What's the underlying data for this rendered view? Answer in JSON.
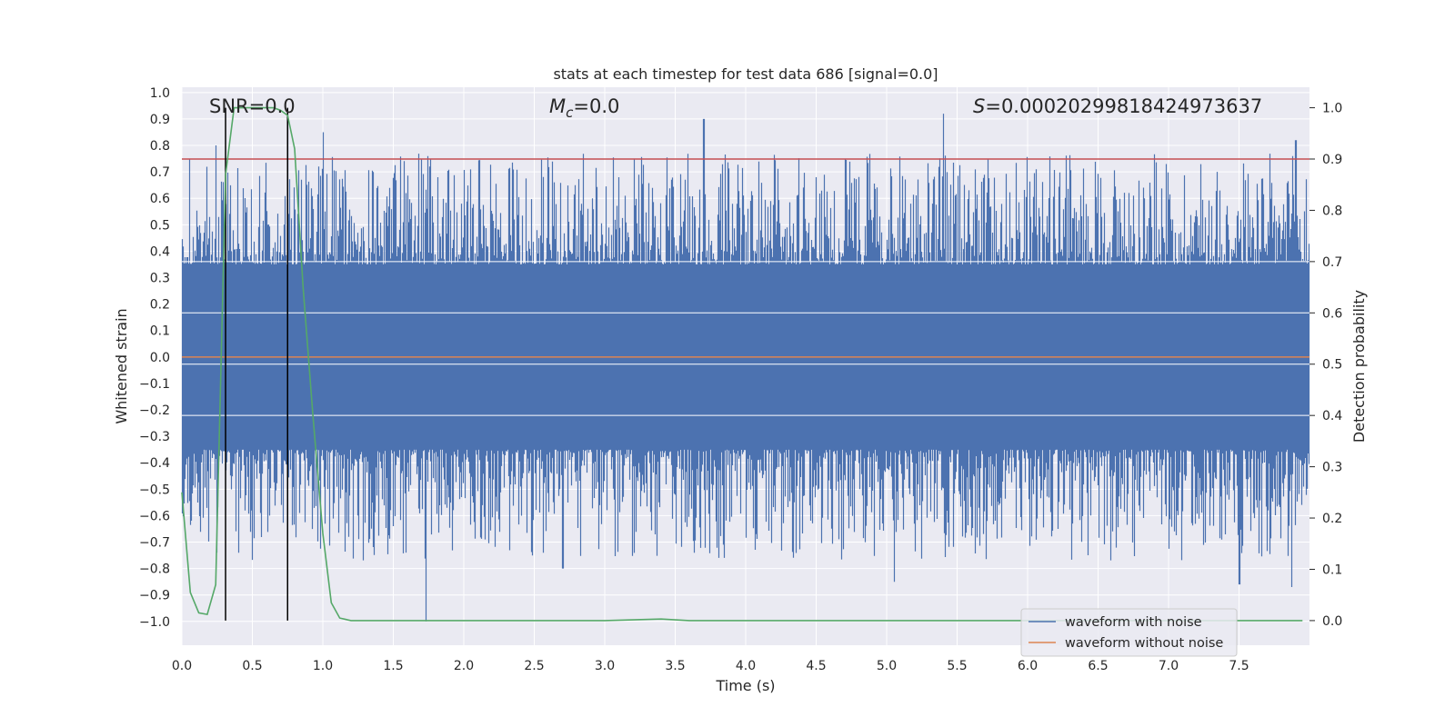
{
  "chart_data": {
    "type": "line",
    "title": "stats at each timestep for test data 686 [signal=0.0]",
    "xlabel": "Time (s)",
    "ylabel": "Whitened strain",
    "y2label": "Detection probability",
    "xlim": [
      0.0,
      8.0
    ],
    "ylim": [
      -1.09,
      1.02
    ],
    "y2lim": [
      -0.048,
      1.04
    ],
    "x_ticks": [
      "0.0",
      "0.5",
      "1.0",
      "1.5",
      "2.0",
      "2.5",
      "3.0",
      "3.5",
      "4.0",
      "4.5",
      "5.0",
      "5.5",
      "6.0",
      "6.5",
      "7.0",
      "7.5"
    ],
    "y_ticks": [
      "1.0",
      "0.9",
      "0.8",
      "0.7",
      "0.6",
      "0.5",
      "0.4",
      "0.3",
      "0.2",
      "0.1",
      "0.0",
      "-0.1",
      "-0.2",
      "-0.3",
      "-0.4",
      "-0.5",
      "-0.6",
      "-0.7",
      "-0.8",
      "-0.9",
      "-1.0"
    ],
    "y2_ticks": [
      "0.0",
      "0.1",
      "0.2",
      "0.3",
      "0.4",
      "0.5",
      "0.6",
      "0.7",
      "0.8",
      "0.9",
      "1.0"
    ],
    "annotations": {
      "snr": "SNR=0.0",
      "mc_symbol": "M",
      "mc_sub": "c",
      "mc_value": "=0.0",
      "s_symbol": "S",
      "s_value": "=0.00020299818424973637"
    },
    "threshold": {
      "axis": "y2",
      "value": 0.9,
      "color": "#c44e52"
    },
    "vertical_markers": {
      "x": [
        0.31,
        0.75
      ],
      "color": "#000000"
    },
    "noisy_waveform": {
      "name": "waveform with noise",
      "color": "#4c72b0",
      "duration": 8.0,
      "envelope": [
        0.35,
        -0.35
      ],
      "notable_peaks": [
        [
          0.24,
          0.8
        ],
        [
          0.75,
          0.92
        ],
        [
          1.0,
          0.85
        ],
        [
          3.7,
          0.9
        ],
        [
          5.4,
          0.92
        ],
        [
          7.9,
          0.82
        ]
      ],
      "notable_troughs": [
        [
          0.4,
          -0.74
        ],
        [
          1.73,
          -1.0
        ],
        [
          2.7,
          -0.8
        ],
        [
          5.05,
          -0.85
        ],
        [
          7.5,
          -0.86
        ],
        [
          7.87,
          -0.87
        ]
      ]
    },
    "clean_waveform": {
      "name": "waveform without noise",
      "color": "#dd8452",
      "value": 0.0
    },
    "detection_probability": {
      "name": "detection probability",
      "color": "#55a868",
      "x": [
        0.0,
        0.06,
        0.12,
        0.18,
        0.24,
        0.31,
        0.37,
        0.44,
        0.55,
        0.65,
        0.7,
        0.75,
        0.8,
        0.86,
        0.93,
        1.0,
        1.06,
        1.12,
        1.2,
        1.5,
        2.0,
        2.5,
        3.0,
        3.4,
        3.6,
        4.0,
        5.0,
        6.0,
        7.0,
        7.95
      ],
      "y": [
        0.25,
        0.055,
        0.015,
        0.012,
        0.07,
        0.87,
        1.0,
        1.0,
        1.0,
        1.0,
        0.995,
        0.985,
        0.92,
        0.65,
        0.4,
        0.17,
        0.035,
        0.005,
        0.0,
        0.0,
        0.0,
        0.0,
        0.0,
        0.003,
        0.0,
        0.0,
        0.0,
        0.0,
        0.0,
        0.0
      ]
    },
    "legend": {
      "position": "lower-right",
      "entries": [
        {
          "label": "waveform with noise",
          "color": "#4c72b0"
        },
        {
          "label": "waveform without noise",
          "color": "#dd8452"
        }
      ]
    },
    "grid": true,
    "background": "#eaeaf2"
  }
}
